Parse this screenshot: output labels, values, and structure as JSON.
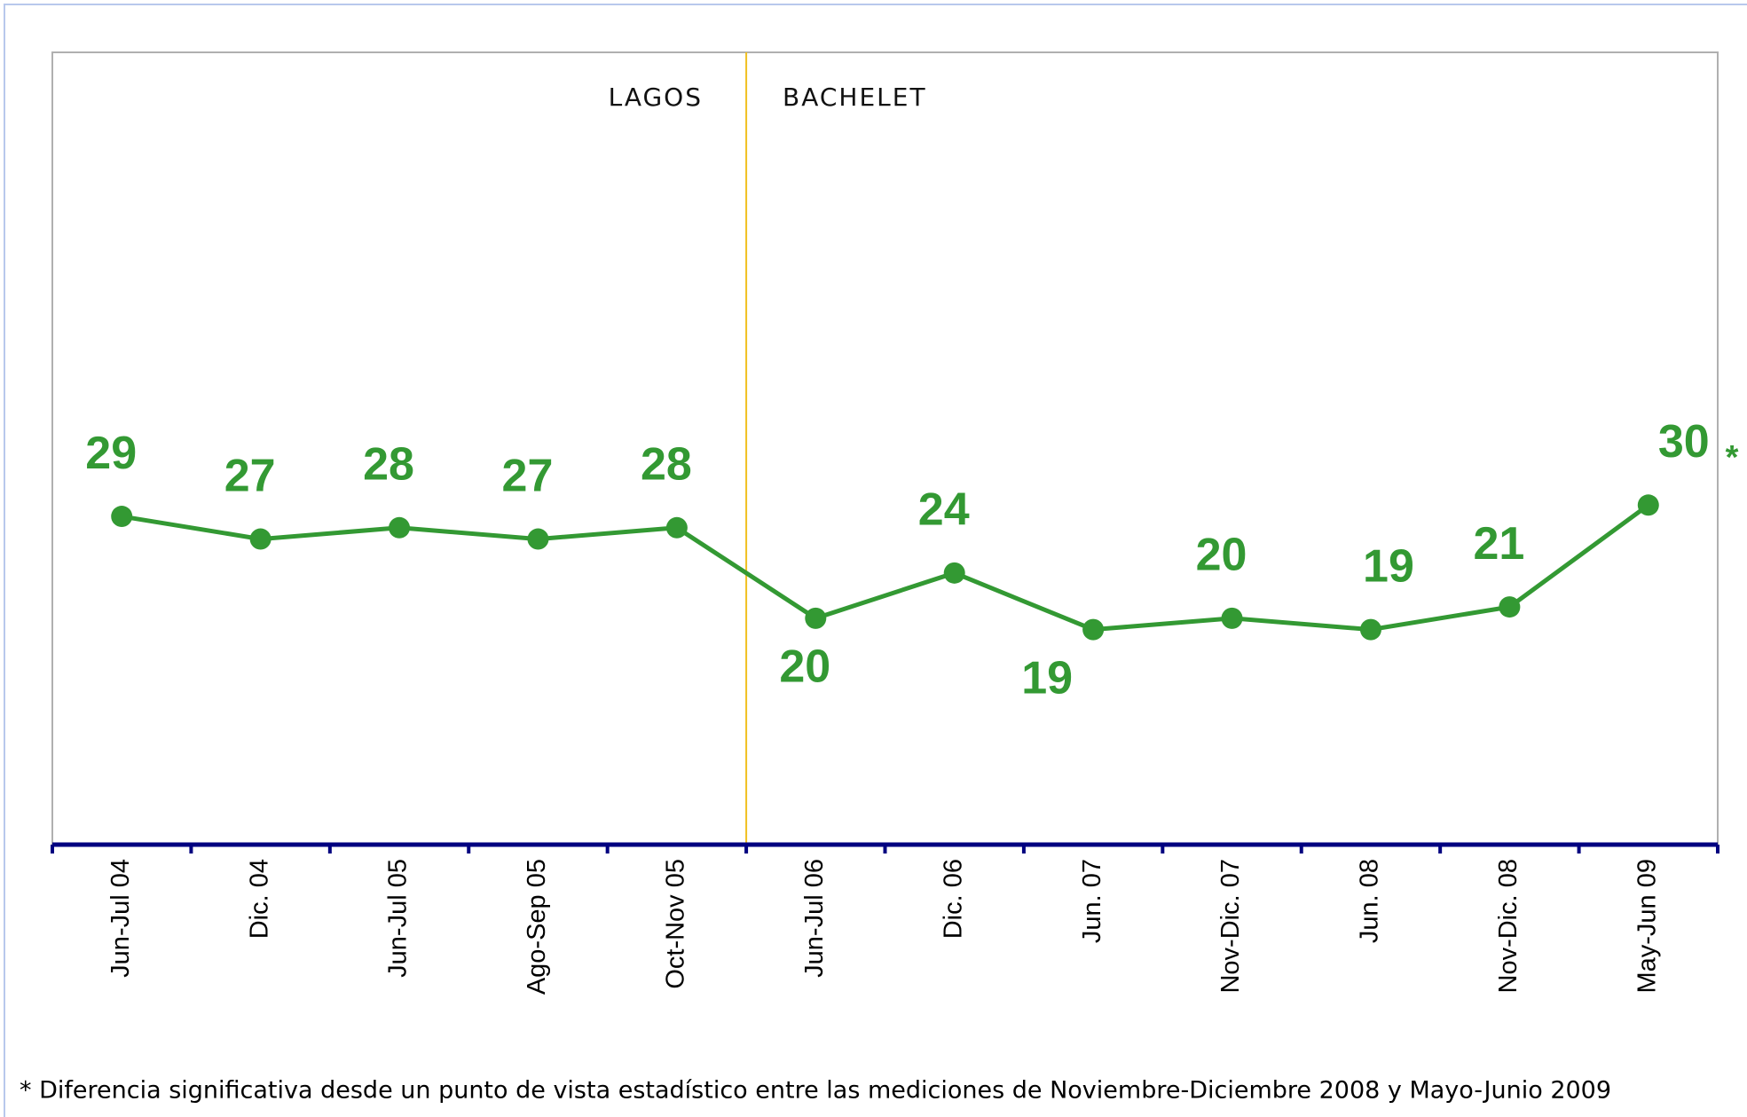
{
  "chart_data": {
    "type": "line",
    "annotations": [
      "LAGOS",
      "BACHELET",
      "*"
    ],
    "footnote": "* Diferencia significativa desde un punto de vista estadístico entre las mediciones de Noviembre-Diciembre 2008 y Mayo-Junio 2009",
    "categories": [
      "Jun-Jul 04",
      "Dic. 04",
      "Jun-Jul 05",
      "Ago-Sep 05",
      "Oct-Nov 05",
      "Jun-Jul 06",
      "Dic. 06",
      "Jun. 07",
      "Nov-Dic. 07",
      "Jun. 08",
      "Nov-Dic. 08",
      "May-Jun 09"
    ],
    "values": [
      29,
      27,
      28,
      27,
      28,
      20,
      24,
      19,
      20,
      19,
      21,
      30
    ],
    "color": "#339933",
    "ylim": [
      0,
      70
    ]
  }
}
